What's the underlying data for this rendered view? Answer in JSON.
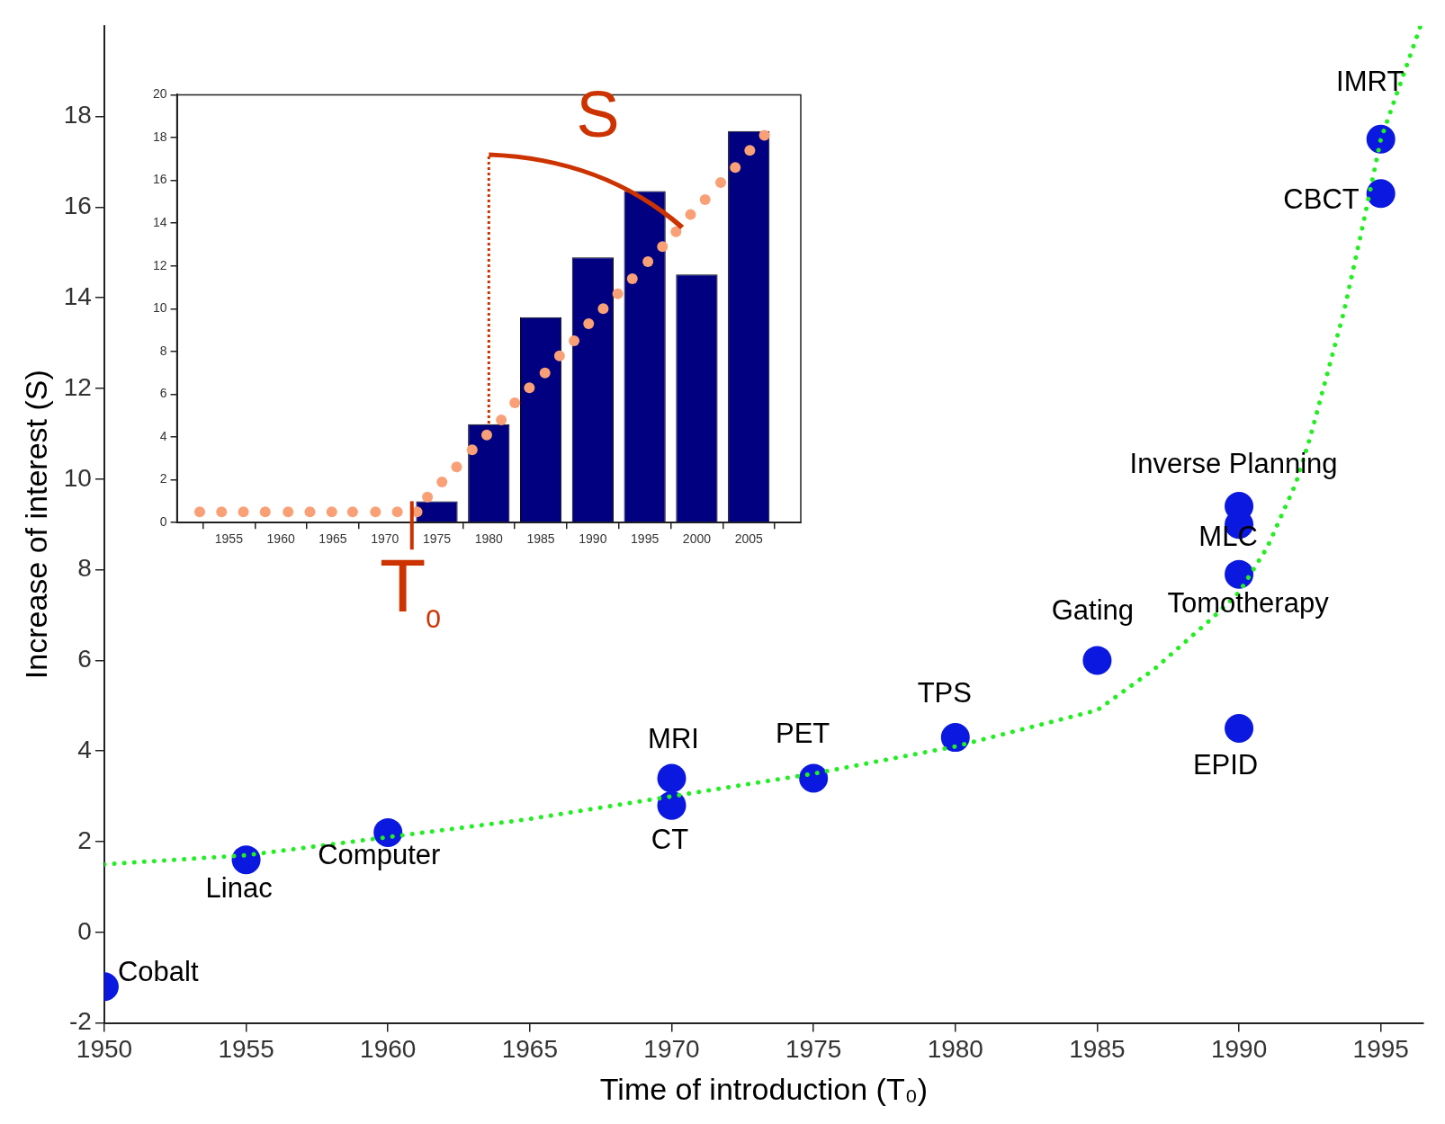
{
  "chart_data": [
    {
      "type": "scatter",
      "xlabel": "Time of introduction (T₀)",
      "ylabel": "Increase of interest (S)",
      "xlim": [
        1950,
        1996.5
      ],
      "xticks": [
        1950,
        1955,
        1960,
        1965,
        1970,
        1975,
        1980,
        1985,
        1990,
        1995
      ],
      "ylim": [
        -2,
        20
      ],
      "yticks": [
        -2,
        0,
        2,
        4,
        6,
        8,
        10,
        12,
        14,
        16,
        18
      ],
      "grid": false,
      "legend": false,
      "series": [
        {
          "type": "scatter",
          "marker": "circle",
          "color": "#0b18e0",
          "x": [
            1950,
            1955,
            1960,
            1970,
            1970,
            1975,
            1980,
            1985,
            1990,
            1990,
            1990,
            1990,
            1995,
            1995
          ],
          "values": [
            -1.2,
            1.6,
            2.2,
            3.4,
            2.8,
            3.4,
            4.3,
            6.0,
            9.4,
            9.0,
            7.9,
            4.5,
            17.5,
            16.3
          ]
        },
        {
          "type": "line",
          "marker": "none",
          "line_style": "dotted",
          "color": "#22ee22",
          "x": [
            1950,
            1955,
            1960,
            1965,
            1970,
            1975,
            1980,
            1985,
            1987,
            1989,
            1990,
            1991,
            1992,
            1992.5,
            1993.7,
            1994.4,
            1995,
            1996.4
          ],
          "values": [
            1.5,
            1.7,
            2.1,
            2.5,
            3.0,
            3.5,
            4.1,
            4.9,
            5.8,
            6.9,
            7.5,
            8.5,
            9.9,
            10.9,
            13.7,
            15.7,
            17.5,
            20.0
          ]
        }
      ],
      "annotations": [
        {
          "text": "Cobalt",
          "x": 1950,
          "y": -1.2
        },
        {
          "text": "Linac",
          "x": 1955,
          "y": 1.6
        },
        {
          "text": "Computer",
          "x": 1960,
          "y": 2.2
        },
        {
          "text": "MRI",
          "x": 1970,
          "y": 3.4
        },
        {
          "text": "CT",
          "x": 1970,
          "y": 2.8
        },
        {
          "text": "PET",
          "x": 1975,
          "y": 3.4
        },
        {
          "text": "TPS",
          "x": 1980,
          "y": 4.3
        },
        {
          "text": "Gating",
          "x": 1985,
          "y": 6.0
        },
        {
          "text": "Inverse Planning",
          "x": 1990,
          "y": 9.4
        },
        {
          "text": "MLC",
          "x": 1990,
          "y": 7.9
        },
        {
          "text": "Tomotherapy",
          "x": 1990,
          "y": 7.9
        },
        {
          "text": "EPID",
          "x": 1990,
          "y": 4.5
        },
        {
          "text": "IMRT",
          "x": 1995,
          "y": 17.5
        },
        {
          "text": "CBCT",
          "x": 1995,
          "y": 16.3
        }
      ]
    },
    {
      "type": "bar",
      "xlim": [
        1950,
        2010
      ],
      "xticks": [
        1955,
        1960,
        1965,
        1970,
        1975,
        1980,
        1985,
        1990,
        1995,
        2000,
        2005
      ],
      "ylim": [
        0,
        20
      ],
      "yticks": [
        0,
        2,
        4,
        6,
        8,
        10,
        12,
        14,
        16,
        18,
        20
      ],
      "grid": false,
      "legend": false,
      "series": [
        {
          "type": "bar",
          "color": "#000080",
          "x": [
            1975,
            1980,
            1985,
            1990,
            1995,
            2000,
            2005
          ],
          "values": [
            1.0,
            4.6,
            9.6,
            12.4,
            15.5,
            11.6,
            18.3
          ]
        },
        {
          "type": "scatter",
          "marker": "circle",
          "color": "#f9a077",
          "x": [
            1952.2,
            1954.3,
            1956.4,
            1958.5,
            1960.7,
            1962.8,
            1964.9,
            1966.9,
            1969.1,
            1971.2,
            1973.1,
            1974.1,
            1975.5,
            1976.9,
            1978.4,
            1979.8,
            1981.2,
            1982.5,
            1983.9,
            1985.4,
            1986.8,
            1988.2,
            1989.6,
            1991.0,
            1992.4,
            1993.8,
            1995.3,
            1996.7,
            1998.0,
            1999.4,
            2000.8,
            2002.3,
            2003.7,
            2005.1,
            2006.5
          ],
          "values": [
            0.5,
            0.5,
            0.5,
            0.5,
            0.5,
            0.5,
            0.5,
            0.5,
            0.5,
            0.5,
            0.5,
            1.2,
            1.9,
            2.6,
            3.4,
            4.1,
            4.8,
            5.6,
            6.3,
            7.0,
            7.8,
            8.5,
            9.3,
            10.0,
            10.7,
            11.4,
            12.2,
            12.9,
            13.6,
            14.4,
            15.1,
            15.9,
            16.6,
            17.4,
            18.1
          ]
        }
      ],
      "annotations": [
        "S",
        "T$_{0}$"
      ]
    }
  ]
}
